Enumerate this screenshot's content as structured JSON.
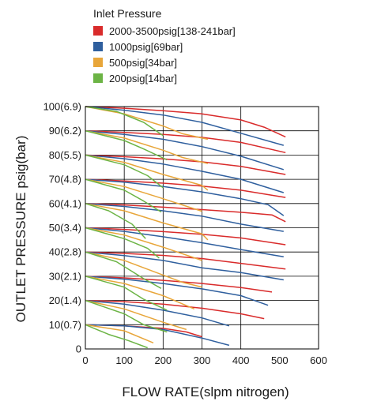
{
  "chart_data": {
    "type": "line",
    "xlabel": "FLOW RATE(slpm nitrogen)",
    "ylabel": "OUTLET PRESSURE psig(bar)",
    "xlim": [
      0,
      600
    ],
    "ylim": [
      0,
      100
    ],
    "x_ticks": [
      0,
      100,
      200,
      300,
      400,
      500,
      600
    ],
    "x_tick_labels": [
      "0",
      "100",
      "200",
      "300",
      "400",
      "500",
      "600"
    ],
    "y_ticks": [
      0,
      10,
      20,
      30,
      40,
      50,
      60,
      70,
      80,
      90,
      100
    ],
    "y_tick_labels": [
      "0",
      "10(0.7)",
      "20(1.4)",
      "30(2.1)",
      "40(2.8)",
      "50(3.4)",
      "60(4.1)",
      "70(4.8)",
      "80(5.5)",
      "90(6.2)",
      "100(6.9)"
    ],
    "grid": true,
    "legend_title": "Inlet Pressure",
    "legend_position": "top-left",
    "series": [
      {
        "name": "2000-3500psig[138-241bar]",
        "color": "#d92b2b",
        "curves": [
          [
            [
              0,
              100
            ],
            [
              100,
              99.3
            ],
            [
              200,
              98.3
            ],
            [
              300,
              97
            ],
            [
              400,
              94.5
            ],
            [
              460,
              91.5
            ],
            [
              515,
              87.5
            ]
          ],
          [
            [
              0,
              90
            ],
            [
              100,
              89.3
            ],
            [
              200,
              88.5
            ],
            [
              300,
              87.3
            ],
            [
              400,
              85.2
            ],
            [
              515,
              81
            ]
          ],
          [
            [
              0,
              80
            ],
            [
              100,
              79.3
            ],
            [
              200,
              78.4
            ],
            [
              300,
              77.2
            ],
            [
              400,
              75.3
            ],
            [
              515,
              72
            ]
          ],
          [
            [
              0,
              70
            ],
            [
              100,
              69.3
            ],
            [
              200,
              68.4
            ],
            [
              300,
              67.2
            ],
            [
              400,
              65.5
            ],
            [
              515,
              62.5
            ]
          ],
          [
            [
              0,
              60
            ],
            [
              100,
              59.4
            ],
            [
              200,
              58.5
            ],
            [
              300,
              57.5
            ],
            [
              400,
              56.4
            ],
            [
              480,
              55.3
            ],
            [
              515,
              52.5
            ]
          ],
          [
            [
              0,
              50
            ],
            [
              100,
              49.3
            ],
            [
              200,
              48.4
            ],
            [
              300,
              47.3
            ],
            [
              400,
              45.8
            ],
            [
              515,
              43
            ]
          ],
          [
            [
              0,
              40
            ],
            [
              100,
              39.4
            ],
            [
              200,
              38.6
            ],
            [
              300,
              37.3
            ],
            [
              400,
              35.3
            ],
            [
              515,
              33
            ]
          ],
          [
            [
              0,
              30
            ],
            [
              100,
              29.3
            ],
            [
              200,
              28.3
            ],
            [
              300,
              27
            ],
            [
              400,
              25.3
            ],
            [
              480,
              23.5
            ]
          ],
          [
            [
              0,
              20
            ],
            [
              100,
              19.5
            ],
            [
              200,
              18.5
            ],
            [
              300,
              16.8
            ],
            [
              400,
              14.5
            ],
            [
              460,
              12.5
            ]
          ],
          [
            [
              0,
              10
            ],
            [
              100,
              9.5
            ],
            [
              200,
              8.5
            ],
            [
              260,
              7
            ],
            [
              300,
              5
            ]
          ]
        ]
      },
      {
        "name": "1000psig[69bar]",
        "color": "#2f5f9e",
        "curves": [
          [
            [
              0,
              100
            ],
            [
              100,
              98.5
            ],
            [
              200,
              96.5
            ],
            [
              300,
              93.5
            ],
            [
              400,
              89
            ],
            [
              510,
              84
            ]
          ],
          [
            [
              0,
              90
            ],
            [
              100,
              88.5
            ],
            [
              200,
              86.5
            ],
            [
              300,
              83.5
            ],
            [
              400,
              79.5
            ],
            [
              510,
              74
            ]
          ],
          [
            [
              0,
              80
            ],
            [
              100,
              78.5
            ],
            [
              200,
              76.3
            ],
            [
              300,
              73.3
            ],
            [
              400,
              70
            ],
            [
              510,
              64.5
            ]
          ],
          [
            [
              0,
              70
            ],
            [
              100,
              68.8
            ],
            [
              200,
              67
            ],
            [
              300,
              64.8
            ],
            [
              400,
              62
            ],
            [
              470,
              59.5
            ],
            [
              510,
              55
            ]
          ],
          [
            [
              0,
              60
            ],
            [
              100,
              58.8
            ],
            [
              200,
              57
            ],
            [
              300,
              54.8
            ],
            [
              400,
              51.5
            ],
            [
              510,
              48.5
            ]
          ],
          [
            [
              0,
              50
            ],
            [
              100,
              48.5
            ],
            [
              200,
              46.3
            ],
            [
              300,
              43.8
            ],
            [
              400,
              41
            ],
            [
              510,
              38
            ]
          ],
          [
            [
              0,
              40
            ],
            [
              100,
              38.5
            ],
            [
              200,
              36.5
            ],
            [
              300,
              33.5
            ],
            [
              400,
              31.5
            ],
            [
              510,
              28.5
            ]
          ],
          [
            [
              0,
              30
            ],
            [
              100,
              28.8
            ],
            [
              200,
              27
            ],
            [
              300,
              24.8
            ],
            [
              400,
              22
            ],
            [
              470,
              18
            ]
          ],
          [
            [
              0,
              20
            ],
            [
              100,
              18.5
            ],
            [
              200,
              16
            ],
            [
              300,
              12.8
            ],
            [
              370,
              9.5
            ]
          ],
          [
            [
              0,
              10
            ],
            [
              100,
              9.5
            ],
            [
              200,
              8
            ],
            [
              300,
              4.5
            ],
            [
              370,
              1.5
            ]
          ]
        ]
      },
      {
        "name": "500psig[34bar]",
        "color": "#e8a63a",
        "curves": [
          [
            [
              0,
              100
            ],
            [
              100,
              97
            ],
            [
              200,
              92
            ],
            [
              250,
              88.8
            ],
            [
              315,
              86.5
            ]
          ],
          [
            [
              0,
              90
            ],
            [
              100,
              87
            ],
            [
              200,
              82
            ],
            [
              250,
              79
            ],
            [
              315,
              76.5
            ]
          ],
          [
            [
              0,
              80
            ],
            [
              100,
              77
            ],
            [
              200,
              72
            ],
            [
              300,
              67.5
            ],
            [
              315,
              65.5
            ]
          ],
          [
            [
              0,
              70
            ],
            [
              100,
              67
            ],
            [
              200,
              62
            ],
            [
              300,
              56.8
            ]
          ],
          [
            [
              0,
              60
            ],
            [
              100,
              57
            ],
            [
              200,
              52
            ],
            [
              300,
              47.5
            ],
            [
              315,
              45
            ]
          ],
          [
            [
              0,
              50
            ],
            [
              100,
              47
            ],
            [
              200,
              42
            ],
            [
              300,
              36.5
            ]
          ],
          [
            [
              0,
              40
            ],
            [
              100,
              36.5
            ],
            [
              200,
              30.5
            ],
            [
              250,
              27.5
            ],
            [
              300,
              25.5
            ]
          ],
          [
            [
              0,
              30
            ],
            [
              100,
              27
            ],
            [
              200,
              22
            ],
            [
              280,
              16.5
            ]
          ],
          [
            [
              0,
              20
            ],
            [
              100,
              16.5
            ],
            [
              200,
              11
            ],
            [
              260,
              8
            ]
          ],
          [
            [
              0,
              10
            ],
            [
              100,
              7.5
            ],
            [
              175,
              2.5
            ]
          ]
        ]
      },
      {
        "name": "200psig[14bar]",
        "color": "#6cb445",
        "curves": [
          [
            [
              0,
              100
            ],
            [
              80,
              98
            ],
            [
              150,
              93.5
            ],
            [
              200,
              88
            ]
          ],
          [
            [
              0,
              90
            ],
            [
              100,
              86
            ],
            [
              150,
              82.5
            ],
            [
              210,
              78
            ]
          ],
          [
            [
              0,
              80
            ],
            [
              100,
              76
            ],
            [
              160,
              71.5
            ],
            [
              200,
              66.5
            ]
          ],
          [
            [
              0,
              70
            ],
            [
              100,
              65.5
            ],
            [
              150,
              61
            ],
            [
              195,
              56.5
            ]
          ],
          [
            [
              0,
              60
            ],
            [
              60,
              57
            ],
            [
              120,
              51.5
            ],
            [
              155,
              45.5
            ]
          ],
          [
            [
              0,
              50
            ],
            [
              100,
              45.5
            ],
            [
              160,
              41.5
            ],
            [
              190,
              37.5
            ]
          ],
          [
            [
              0,
              40
            ],
            [
              80,
              36
            ],
            [
              150,
              29
            ],
            [
              195,
              25
            ]
          ],
          [
            [
              0,
              30
            ],
            [
              100,
              25.5
            ],
            [
              150,
              20.5
            ],
            [
              210,
              16
            ]
          ],
          [
            [
              0,
              20
            ],
            [
              100,
              14.5
            ],
            [
              150,
              10
            ],
            [
              210,
              7
            ]
          ],
          [
            [
              0,
              10
            ],
            [
              60,
              6
            ],
            [
              110,
              3.5
            ],
            [
              160,
              0.5
            ]
          ]
        ]
      }
    ]
  }
}
